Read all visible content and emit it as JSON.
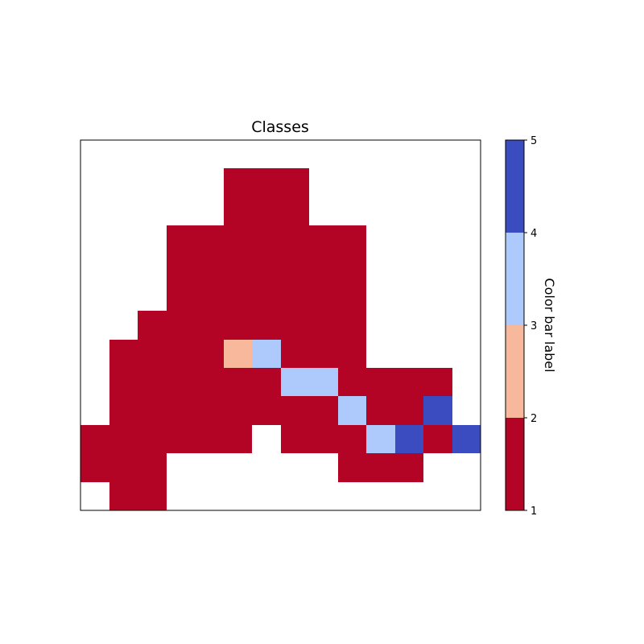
{
  "chart_data": {
    "type": "heatmap",
    "title": "Classes",
    "xlabel": "",
    "ylabel": "",
    "n_rows": 13,
    "n_cols": 14,
    "grid": false,
    "x_ticks": false,
    "y_ticks": false,
    "colorbar": {
      "label": "Color bar label",
      "placement": "right",
      "range": [
        1,
        5
      ],
      "ticks": [
        "1",
        "2",
        "3",
        "4",
        "5"
      ],
      "bins": [
        {
          "from": 1,
          "to": 2,
          "color": "#b40426"
        },
        {
          "from": 2,
          "to": 3,
          "color": "#f7b89c"
        },
        {
          "from": 3,
          "to": 4,
          "color": "#aec9fc"
        },
        {
          "from": 4,
          "to": 5,
          "color": "#3b4cc0"
        }
      ]
    },
    "values": [
      [
        null,
        null,
        null,
        null,
        null,
        null,
        null,
        null,
        null,
        null,
        null,
        null,
        null,
        null
      ],
      [
        null,
        null,
        null,
        null,
        null,
        1,
        1,
        1,
        null,
        null,
        null,
        null,
        null,
        null
      ],
      [
        null,
        null,
        null,
        null,
        null,
        1,
        1,
        1,
        null,
        null,
        null,
        null,
        null,
        null
      ],
      [
        null,
        null,
        null,
        1,
        1,
        1,
        1,
        1,
        1,
        1,
        null,
        null,
        null,
        null
      ],
      [
        null,
        null,
        null,
        1,
        1,
        1,
        1,
        1,
        1,
        1,
        null,
        null,
        null,
        null
      ],
      [
        null,
        null,
        null,
        1,
        1,
        1,
        1,
        1,
        1,
        1,
        null,
        null,
        null,
        null
      ],
      [
        null,
        null,
        1,
        1,
        1,
        1,
        1,
        1,
        1,
        1,
        null,
        null,
        null,
        null
      ],
      [
        null,
        1,
        1,
        1,
        1,
        2,
        3,
        1,
        1,
        1,
        null,
        null,
        null,
        null
      ],
      [
        null,
        1,
        1,
        1,
        1,
        1,
        1,
        3,
        3,
        1,
        1,
        1,
        1,
        null
      ],
      [
        null,
        1,
        1,
        1,
        1,
        1,
        1,
        1,
        1,
        3,
        1,
        1,
        4,
        null
      ],
      [
        1,
        1,
        1,
        1,
        1,
        1,
        null,
        1,
        1,
        1,
        3,
        4,
        1,
        4
      ],
      [
        1,
        1,
        1,
        null,
        null,
        null,
        null,
        null,
        null,
        1,
        1,
        1,
        null,
        null
      ],
      [
        null,
        1,
        1,
        null,
        null,
        null,
        null,
        null,
        null,
        null,
        null,
        null,
        null,
        null
      ]
    ]
  }
}
